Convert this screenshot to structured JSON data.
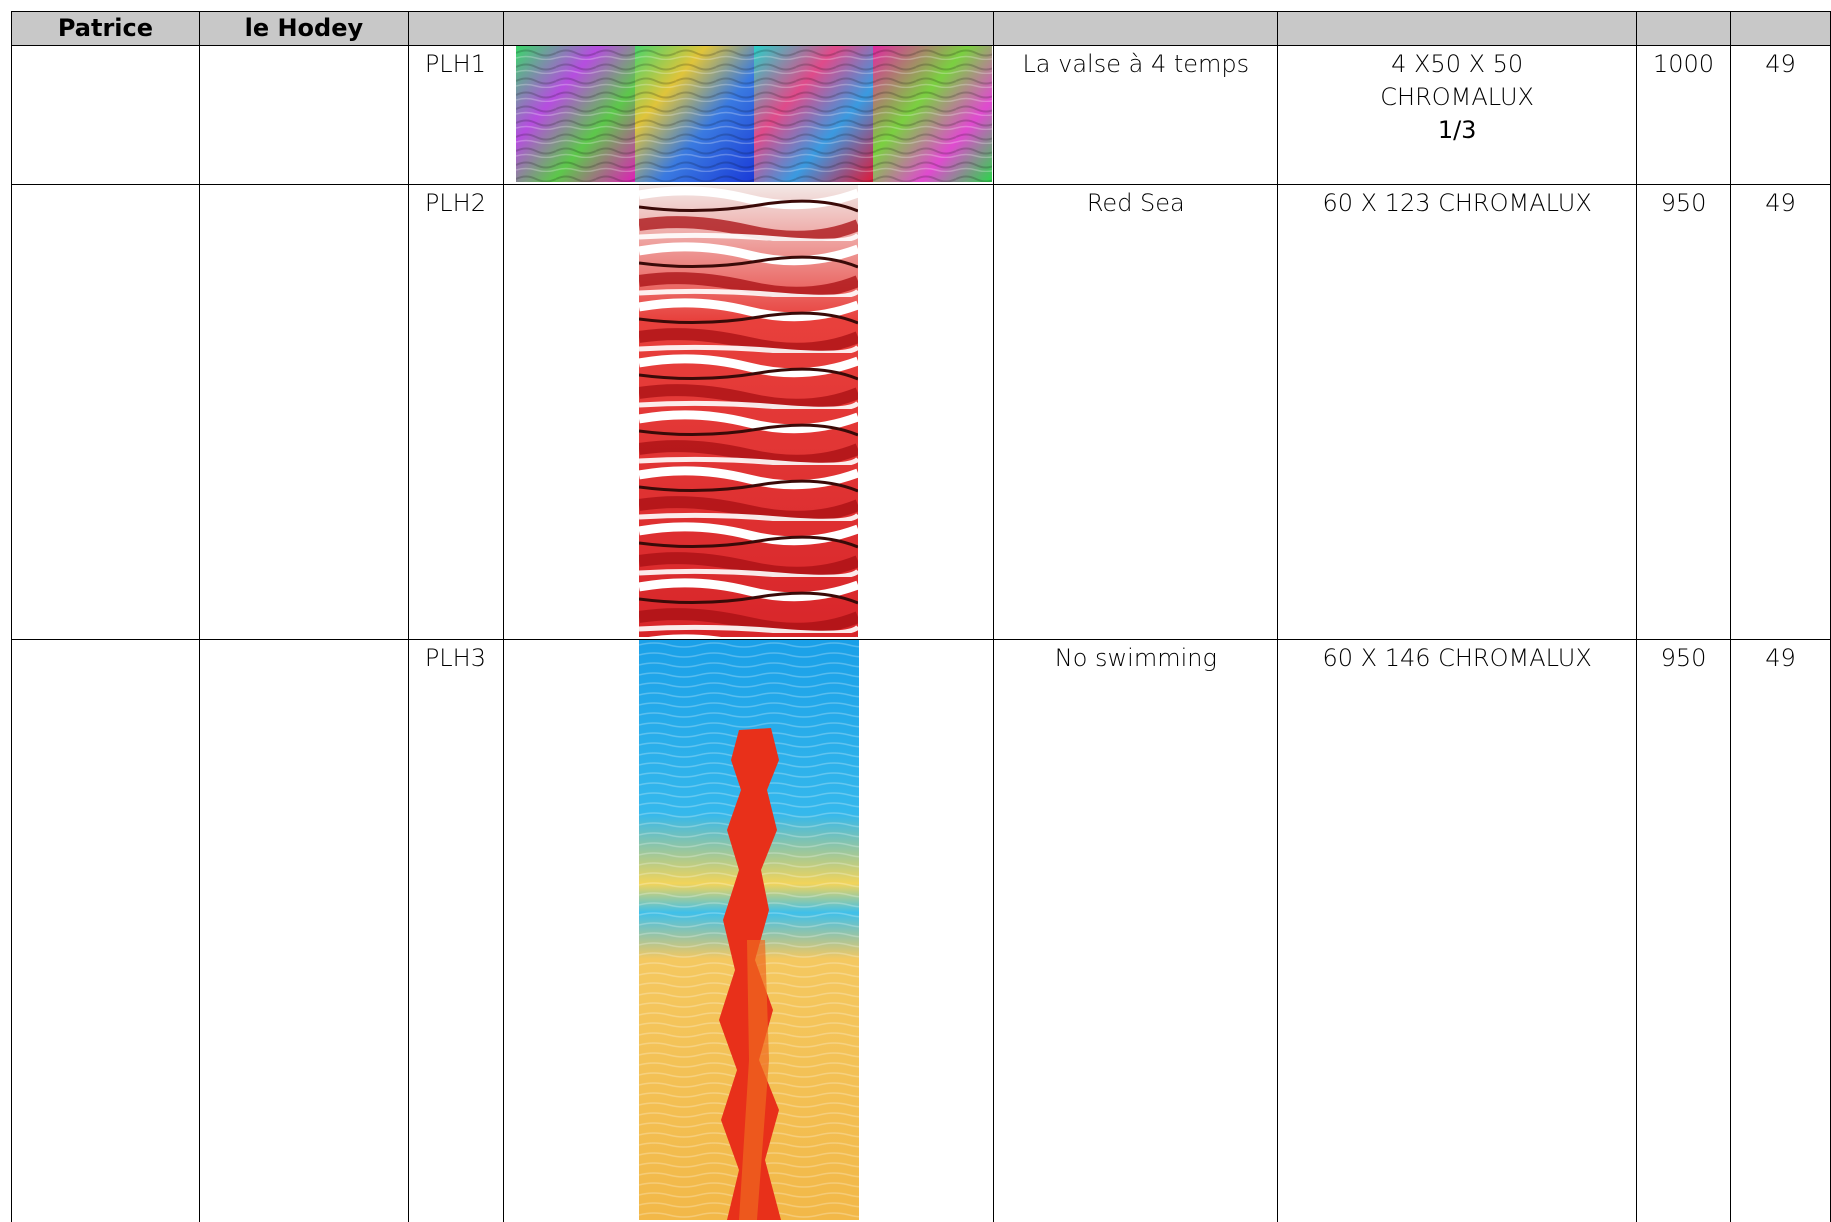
{
  "header": {
    "first_name": "Patrice",
    "last_name": "le Hodey"
  },
  "rows": [
    {
      "ref": "PLH1",
      "title": "La valse à 4 temps",
      "dimensions_lines": [
        "4 X50 X 50",
        "CHROMALUX",
        "1/3"
      ],
      "price": "1000",
      "tax": "49",
      "artwork_icon": "multicolor-water-quadriptych-image"
    },
    {
      "ref": "PLH2",
      "title": "Red Sea",
      "dimensions_lines": [
        "60 X 123 CHROMALUX"
      ],
      "price": "950",
      "tax": "49",
      "artwork_icon": "red-water-ripples-image"
    },
    {
      "ref": "PLH3",
      "title": "No swimming",
      "dimensions_lines": [
        "60 X 146 CHROMALUX"
      ],
      "price": "950",
      "tax": "49",
      "artwork_icon": "blue-yellow-red-reflection-image"
    }
  ],
  "colors": {
    "header_bg": "#c8c8c8",
    "grid_line": "#000000"
  }
}
